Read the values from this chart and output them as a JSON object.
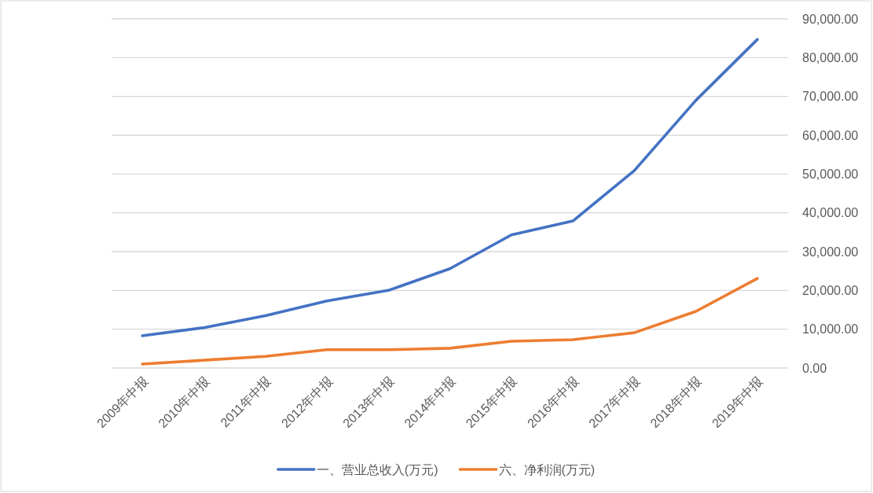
{
  "chart_data": {
    "type": "line",
    "categories": [
      "2009年中报",
      "2010年中报",
      "2011年中报",
      "2012年中报",
      "2013年中报",
      "2014年中报",
      "2015年中报",
      "2016年中报",
      "2017年中报",
      "2018年中报",
      "2019年中报"
    ],
    "series": [
      {
        "name": "一、营业总收入(万元)",
        "color": "#4472c4",
        "axis": "y2",
        "values": [
          8300,
          10400,
          13500,
          17300,
          20000,
          25600,
          34300,
          37900,
          50900,
          69000,
          84700
        ]
      },
      {
        "name": "六、净利润(万元)",
        "color": "#ed7d31",
        "axis": "y2",
        "values": [
          1000,
          2000,
          3000,
          4700,
          4700,
          5100,
          6900,
          7300,
          9100,
          14600,
          23100
        ]
      }
    ],
    "y2lim": [
      0,
      90000
    ],
    "y2ticks": [
      {
        "value": 0,
        "label": "0.00"
      },
      {
        "value": 10000,
        "label": "10,000.00"
      },
      {
        "value": 20000,
        "label": "20,000.00"
      },
      {
        "value": 30000,
        "label": "30,000.00"
      },
      {
        "value": 40000,
        "label": "40,000.00"
      },
      {
        "value": 50000,
        "label": "50,000.00"
      },
      {
        "value": 60000,
        "label": "60,000.00"
      },
      {
        "value": 70000,
        "label": "70,000.00"
      },
      {
        "value": 80000,
        "label": "80,000.00"
      },
      {
        "value": 90000,
        "label": "90,000.00"
      }
    ],
    "grid": "y",
    "legend": "bottom"
  }
}
